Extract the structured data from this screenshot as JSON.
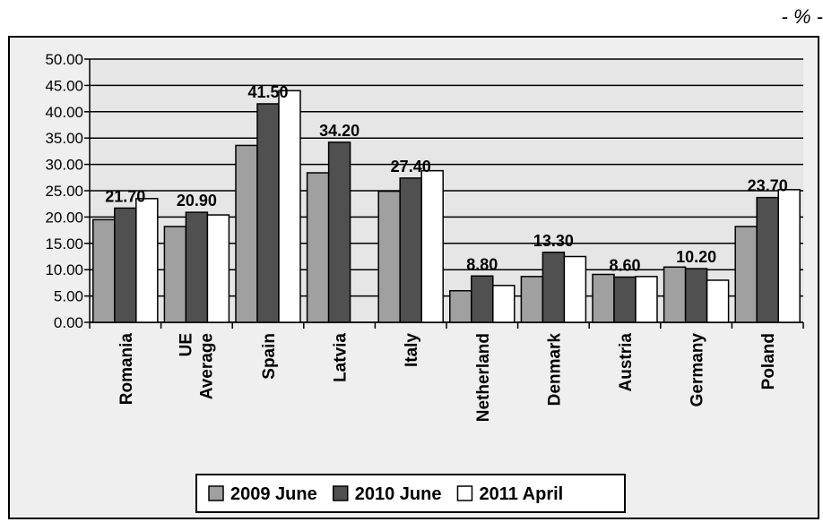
{
  "unit_label": "- % -",
  "chart_data": {
    "type": "bar",
    "title": "",
    "xlabel": "",
    "ylabel": "",
    "ylim": [
      0,
      50
    ],
    "yticks": [
      "0.00",
      "5.00",
      "10.00",
      "15.00",
      "20.00",
      "25.00",
      "30.00",
      "35.00",
      "40.00",
      "45.00",
      "50.00"
    ],
    "categories": [
      "Romania",
      "UE Average",
      "Spain",
      "Latvia",
      "Italy",
      "Netherland",
      "Denmark",
      "Austria",
      "Germany",
      "Poland"
    ],
    "series": [
      {
        "name": "2009 June",
        "color": "#a0a0a0",
        "values": [
          19.5,
          18.2,
          33.6,
          28.4,
          24.9,
          6.0,
          8.7,
          9.1,
          10.5,
          18.2
        ]
      },
      {
        "name": "2010 June",
        "color": "#505050",
        "values": [
          21.7,
          20.9,
          41.5,
          34.2,
          27.4,
          8.8,
          13.3,
          8.6,
          10.2,
          23.7
        ]
      },
      {
        "name": "2011 April",
        "color": "#ffffff",
        "values": [
          23.5,
          20.4,
          44.0,
          0,
          28.8,
          7.0,
          12.5,
          8.7,
          8.0,
          25.2
        ]
      }
    ],
    "data_labels": [
      "21.70",
      "20.90",
      "41.50",
      "34.20",
      "27.40",
      "8.80",
      "13.30",
      "8.60",
      "10.20",
      "23.70"
    ],
    "grid": true,
    "legend_position": "bottom"
  }
}
